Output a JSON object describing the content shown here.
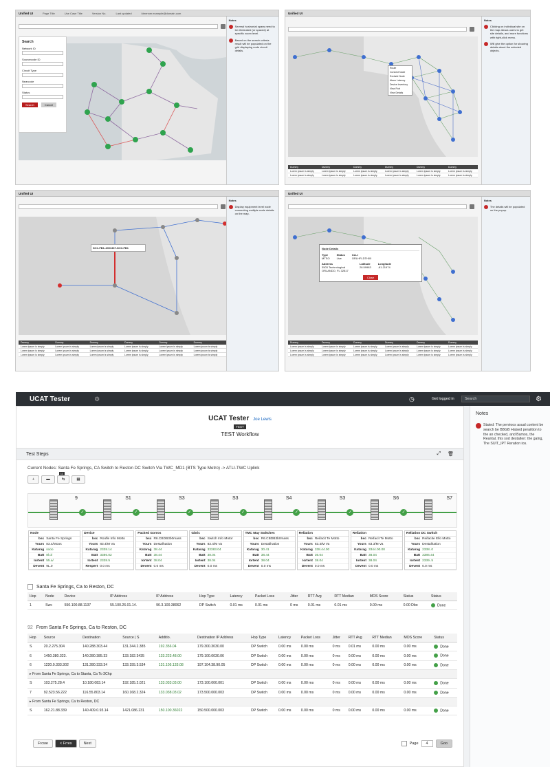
{
  "tiles": [
    {
      "app_title": "Unified UI",
      "header_cols": [
        "Page Title",
        "Use Case Title",
        "Version No.",
        "Last updated",
        "Contact"
      ],
      "last_updated": "00/00/0000",
      "contact": "kbrenner.example@domain.com",
      "notes_title": "Notes",
      "notes": [
        "Several horizontal spans need to be eliminated (or spaced) at specific zoom level."
      ],
      "notes2": [
        "Based on the search criteria result will be populated on the grid displaying node circuit details."
      ]
    },
    {
      "app_title": "Unified UI",
      "notes_title": "Notes",
      "notes": [
        "Clicking on individual site on the map allows users to get site details, and more functions with right-click menu.",
        "Will give the option for showing details about the selected objects."
      ]
    },
    {
      "app_title": "Unified UI",
      "notes_title": "Notes",
      "notes": [
        "Display equipment level node connecting multiple node details on the map."
      ]
    },
    {
      "app_title": "Unified UI",
      "notes_title": "Notes",
      "notes": [
        "The details will be populated on the popup."
      ]
    }
  ],
  "search_panel": {
    "title": "Search",
    "fields": [
      "Network ID",
      "Sourcecode ID",
      "Circuit Type",
      "Nearcode",
      "Status"
    ],
    "search_btn": "Search",
    "cancel_btn": "Cancel"
  },
  "context_menu": [
    "Route",
    "Connect Node",
    "Exclude Node",
    "Alarm Latency",
    "Device Inventory",
    "View Port",
    "View Details"
  ],
  "detail_popup": {
    "title": "Node Details",
    "type_label": "Type",
    "type_val": "MTSO",
    "status_label": "Status",
    "status_val": "Live",
    "clli_label": "CLLI",
    "clli_val": "ORLHFLDTH00",
    "addr_label": "Address",
    "addr_val": "3503 Technological ORLANDO, FL 32817",
    "lat_label": "Latitude",
    "lat_val": "28.59983",
    "lon_label": "Longitude",
    "lon_val": "-81.21974",
    "close": "Close"
  },
  "map_table": {
    "cols": [
      "Dummy",
      "Dummy",
      "Dummy",
      "Dummy",
      "Dummy",
      "Dummy",
      "Dummy",
      "Dummy"
    ],
    "cell": "Lorem ipsum is simply"
  },
  "link_label": "DC1-FB1-4091367-DC3-FB1",
  "app": {
    "title": "UCAT Tester",
    "search_placeholder": "Search",
    "user": "Get logged in"
  },
  "page": {
    "title": "UCAT Tester",
    "user_link": "Joe Lewis",
    "tag": "TEST",
    "workflow": "TEST Workflow",
    "steps": "Test Steps"
  },
  "current_nodes": "Current Nodes: Santa Fe Springs, CA Switch to Reston DC Switch   Via TWC_MD1   (BTS Type Metro)   -> ATLI-TWC Uplink",
  "toolbar_badge": "11",
  "nodes": [
    {
      "label": "9",
      "title": "Node",
      "rows": [
        [
          "bsc",
          "Santa Fe Springs"
        ],
        [
          "Yours",
          "83.4/Moos"
        ],
        [
          "Katarag",
          "sooo"
        ],
        [
          "Batt",
          "8l.ol"
        ],
        [
          "Iortent",
          "55.a/"
        ],
        [
          "Devent",
          "9L.0"
        ]
      ]
    },
    {
      "label": "S1",
      "title": "Device",
      "rows": [
        [
          "bsc",
          "Roofle Info Motto"
        ],
        [
          "Yours",
          "83.4/M Va"
        ],
        [
          "Katarag",
          "2338.14"
        ],
        [
          "Batt",
          "3386.02"
        ],
        [
          "Iortent",
          "2338.5"
        ],
        [
          "Respert",
          "0.0 ms"
        ]
      ]
    },
    {
      "label": "S3",
      "title": "Packed Gorros",
      "rows": [
        [
          "bsc",
          "R6.CBDB3b0mass"
        ],
        [
          "Yours",
          "Destalhation"
        ],
        [
          "Katarag",
          "38.44"
        ],
        [
          "Batt",
          "38.44"
        ],
        [
          "Iortent",
          "38.04"
        ],
        [
          "Devent",
          "0.0 ms"
        ]
      ]
    },
    {
      "label": "S3",
      "title": "Gbric",
      "rows": [
        [
          "bsc",
          "Switch Info Motor"
        ],
        [
          "Yours",
          "83.4/M Va"
        ],
        [
          "Katarag",
          "33383.04"
        ],
        [
          "Batt",
          "38.04"
        ],
        [
          "Iortent",
          "38.04"
        ],
        [
          "Devent",
          "0.0 ms"
        ]
      ]
    },
    {
      "label": "S4",
      "title": "TMC May Switches",
      "rows": [
        [
          "bsc",
          "R6.CBDB3b0mass"
        ],
        [
          "Yours",
          "Destalhation"
        ],
        [
          "Katarag",
          "30.41"
        ],
        [
          "Batt",
          "38.44"
        ],
        [
          "Iortent",
          "38.04"
        ],
        [
          "Devent",
          "0.0 ms"
        ]
      ]
    },
    {
      "label": "S3",
      "title": "Reliation",
      "rows": [
        [
          "bsc",
          "Reifacit Te Motto"
        ],
        [
          "Yours",
          "83.3/M Va"
        ],
        [
          "Katarag",
          "338.44.00"
        ],
        [
          "Batt",
          "36.04"
        ],
        [
          "Iortent",
          "38.04"
        ],
        [
          "Devent",
          "0.0 ms"
        ]
      ]
    },
    {
      "label": "S6",
      "title": "Reliation",
      "rows": [
        [
          "bsc",
          "Reifacit Te Motto"
        ],
        [
          "Yours",
          "83.3/M Va"
        ],
        [
          "Katarag",
          "3344.00.00"
        ],
        [
          "Batt",
          "38.04"
        ],
        [
          "Iortent",
          "38.04"
        ],
        [
          "Devent",
          "0.0 ms"
        ]
      ]
    },
    {
      "label": "S7",
      "title": "Reliation DC Switch",
      "rows": [
        [
          "bsc",
          "Reifacite Ello Motto"
        ],
        [
          "Yours",
          "Destalhation"
        ],
        [
          "Katarag",
          "2338..0"
        ],
        [
          "Batt",
          "3386.44"
        ],
        [
          "Iortent",
          "2339..5"
        ],
        [
          "Devent",
          "0.0 ms"
        ]
      ]
    }
  ],
  "section1": {
    "title": "Santa Fe Springs, Ca to Reston, DC",
    "cols": [
      "Hop",
      "Node",
      "Device",
      "IP Address",
      "IP Address",
      "Hop Type",
      "Latency",
      "Packet Loss",
      "Jitter",
      "RTT Avg",
      "RTT Median",
      "MOS Score",
      "Status",
      "Status"
    ],
    "row": [
      "1",
      "Swc",
      "550.100.88.1137",
      "55.100.26.01.14.",
      "96.3.100.38062",
      "DP Switch",
      "0.01 ms",
      "0.01 ms",
      "0 ms",
      "0.01 ms",
      "0.01 ms",
      "0.00 ms",
      "0.00 Dbo",
      "Done"
    ]
  },
  "section2": {
    "num": "92",
    "title": "From Santa Fe Springs, Ca to Reston, DC",
    "cols": [
      "Hop",
      "Source",
      "Destination",
      "Source | S",
      "Additio.",
      "Destination IP Address",
      "Hop Type",
      "Latency",
      "Packet Loss",
      "Jitter",
      "RTT Avg",
      "RTT Median",
      "MOS Score",
      "Status"
    ],
    "rows": [
      [
        "S",
        "20.2.275.304",
        "140.288.303.44",
        "131.344.2.385",
        "192.356.04",
        "179.300.3030.00",
        "DP Switch",
        "0.00 ms",
        "0.00 ms",
        "0 ms",
        "0.01 ms",
        "0.00 ms",
        "0.00 ms",
        "Done"
      ],
      [
        "6",
        "1450.380.323.",
        "140.280.385.33",
        "133.182.3435",
        "133.223.48.00",
        "179.100.0030.06",
        "DP Switch",
        "0.00 ms",
        "0.00 ms",
        "0 ms",
        "0.00 ms",
        "0.00 ms",
        "0.00 ms",
        "Done"
      ],
      [
        "6",
        "1220.0.333.302",
        "131.280.333.34",
        "133.155.3.534",
        "131.105.133.08",
        "197.104.38.90.05",
        "DP Switch",
        "0.00 ms",
        "0.00 ms",
        "0 ms",
        "0.00 ms",
        "0.00 ms",
        "0.00 ms",
        "Done"
      ]
    ],
    "sub1": "From Santa Fe Springs, Ca to Stanta, Ca To 3Chp",
    "rows2": [
      [
        "S",
        "103.275.28.4",
        "10.180.083.14",
        "192.185.2.021",
        "133.033.03.00",
        "173.100.000.001",
        "DP Switch",
        "0.00 ms",
        "0.00 ms",
        "0 ms",
        "0.00 ms",
        "0.00 ms",
        "0.00 ms",
        "Done"
      ],
      [
        "7",
        "92.523.56.222",
        "116.55.803.14",
        "160.168.2.324",
        "133.038.03.02",
        "173.500.000.003",
        "DP Switch",
        "0.00 ms",
        "0.00 ms",
        "0 ms",
        "0.00 ms",
        "0.00 ms",
        "0.00 ms",
        "Done"
      ]
    ],
    "sub2": "From Santa Fe Springs, Ca to Reston, DC",
    "rows3": [
      [
        "S",
        "162.21.88.339",
        "140.409.0.93.14",
        "1421.086.231",
        "150.100.36022",
        "150.500.000.003",
        "DP Switch",
        "0.00 ms",
        "0.00 ms",
        "0 ms",
        "0.00 ms",
        "0.00 ms",
        "0.00 ms",
        "Done"
      ]
    ]
  },
  "pager": {
    "first": "Frcwe",
    "prev": "< Frres",
    "next": "Next",
    "page_label": "Page",
    "page": "4",
    "go": "Goo"
  },
  "notes_title": "Notes",
  "right_note": "Stated: The pervioos asual content be search be BBGB Halsed peraiition to the an checked, and Bamos, the Reantal, this sod destalten: the galng, The SUIT_IPT Reration ios."
}
